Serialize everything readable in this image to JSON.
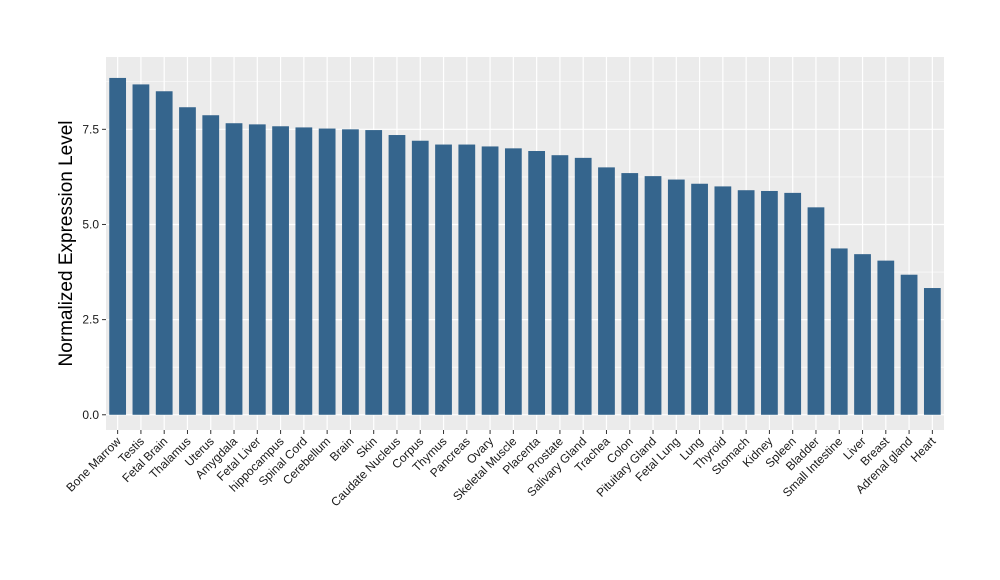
{
  "chart_data": {
    "type": "bar",
    "title": "",
    "xlabel": "",
    "ylabel": "Normalized Expression Level",
    "ylim": [
      -0.4,
      9.4
    ],
    "yticks": [
      0.0,
      2.5,
      5.0,
      7.5
    ],
    "ytick_labels": [
      "0.0",
      "2.5",
      "5.0",
      "7.5"
    ],
    "grid": true,
    "legend": "none",
    "bar_color": "#35658d",
    "panel_background": "#ebebeb",
    "grid_color": "#ffffff",
    "categories": [
      "Bone Marrow",
      "Testis",
      "Fetal Brain",
      "Thalamus",
      "Uterus",
      "Amygdala",
      "Fetal Liver",
      "hippocampus",
      "Spinal Cord",
      "Cerebellum",
      "Brain",
      "Skin",
      "Caudate Nucleus",
      "Corpus",
      "Thymus",
      "Pancreas",
      "Ovary",
      "Skeletal Muscle",
      "Placenta",
      "Prostate",
      "Salivary Gland",
      "Trachea",
      "Colon",
      "Pituitary Gland",
      "Fetal Lung",
      "Lung",
      "Thyroid",
      "Stomach",
      "Kidney",
      "Spleen",
      "Bladder",
      "Small Intestine",
      "Liver",
      "Breast",
      "Adrenal gland",
      "Heart"
    ],
    "values": [
      8.85,
      8.68,
      8.5,
      8.08,
      7.87,
      7.66,
      7.63,
      7.58,
      7.55,
      7.52,
      7.5,
      7.48,
      7.35,
      7.2,
      7.1,
      7.1,
      7.05,
      7.0,
      6.93,
      6.82,
      6.75,
      6.5,
      6.35,
      6.27,
      6.18,
      6.07,
      6.0,
      5.9,
      5.88,
      5.83,
      5.45,
      4.37,
      4.22,
      4.05,
      3.68,
      3.33
    ]
  }
}
